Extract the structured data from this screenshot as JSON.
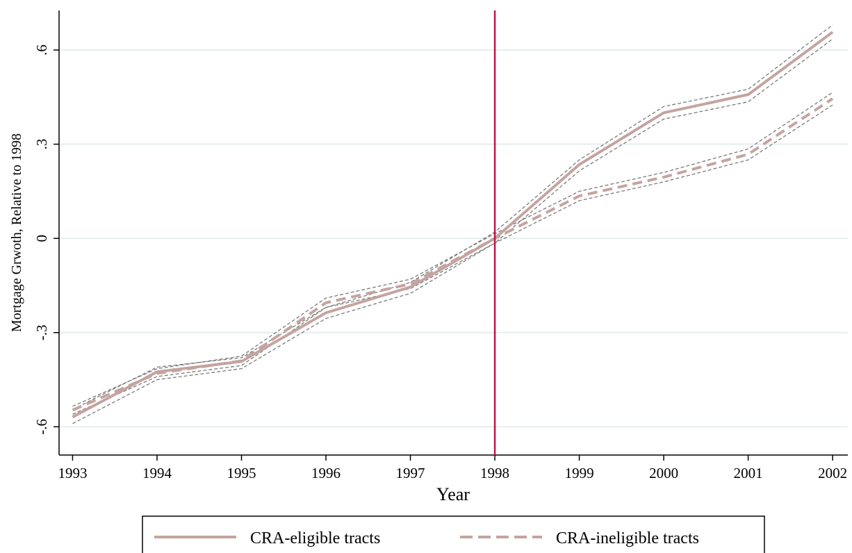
{
  "chart_data": {
    "type": "line",
    "x_label": "Year",
    "y_label": "Mortgage Grwoth, Relative to 1998",
    "x": [
      1993,
      1994,
      1995,
      1996,
      1997,
      1998,
      1999,
      2000,
      2001,
      2002
    ],
    "xlim": [
      1992.84,
      2002.18
    ],
    "xticks": [
      1993,
      1994,
      1995,
      1996,
      1997,
      1998,
      1999,
      2000,
      2001,
      2002
    ],
    "ylim": [
      -0.69,
      0.726
    ],
    "yticks": [
      {
        "value": -0.6,
        "label": "-.6"
      },
      {
        "value": -0.3,
        "label": "-.3"
      },
      0,
      {
        "value": 0.3,
        "label": ".3"
      },
      {
        "value": 0.6,
        "label": ".6"
      }
    ],
    "grid": true,
    "legend": "bottom",
    "reference_line": {
      "x": 1998,
      "color": "#c0124a"
    },
    "band_color": "#7a7a7a",
    "series": [
      {
        "name": "CRA-eligible tracts",
        "color": "#c4a4a0",
        "style": "solid",
        "values": [
          -0.569,
          -0.425,
          -0.392,
          -0.237,
          -0.155,
          0,
          0.235,
          0.4,
          0.458,
          0.657
        ],
        "upper": [
          -0.545,
          -0.41,
          -0.38,
          -0.22,
          -0.14,
          0.02,
          0.25,
          0.42,
          0.475,
          0.68
        ],
        "lower": [
          -0.59,
          -0.45,
          -0.415,
          -0.255,
          -0.175,
          -0.015,
          0.215,
          0.38,
          0.435,
          0.635
        ]
      },
      {
        "name": "CRA-ineligible tracts",
        "color": "#c4a4a0",
        "style": "dashed",
        "values": [
          -0.547,
          -0.43,
          -0.39,
          -0.205,
          -0.145,
          0,
          0.135,
          0.195,
          0.268,
          0.445
        ],
        "upper": [
          -0.535,
          -0.415,
          -0.375,
          -0.19,
          -0.13,
          0.015,
          0.15,
          0.21,
          0.285,
          0.465
        ],
        "lower": [
          -0.56,
          -0.44,
          -0.405,
          -0.22,
          -0.16,
          -0.015,
          0.12,
          0.18,
          0.25,
          0.425
        ]
      }
    ]
  }
}
